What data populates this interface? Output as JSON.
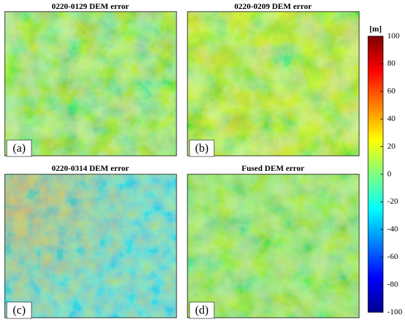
{
  "chart_data": {
    "type": "image-grid",
    "panels": [
      {
        "title": "0220-0129 DEM error",
        "label": "(a)"
      },
      {
        "title": "0220-0209 DEM error",
        "label": "(b)"
      },
      {
        "title": "0220-0314 DEM error",
        "label": "(c)"
      },
      {
        "title": "Fused DEM error",
        "label": "(d)"
      }
    ],
    "colorbar": {
      "unit": "[m]",
      "lim": [
        -100,
        100
      ],
      "ticks": [
        100,
        80,
        60,
        40,
        20,
        0,
        -20,
        -40,
        -60,
        -80,
        -100
      ],
      "colormap": "jet"
    }
  }
}
